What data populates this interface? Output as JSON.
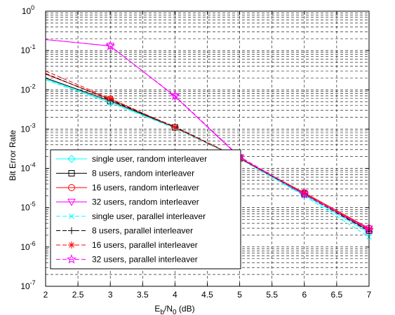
{
  "chart_data": {
    "type": "line",
    "xlabel": {
      "base1": "E",
      "sub1": "b",
      "mid": "/N",
      "sub2": "0",
      "tail": " (dB)"
    },
    "ylabel": "Bit Error Rate",
    "xlim": [
      2,
      7
    ],
    "ylim_exp": [
      -7,
      0
    ],
    "y_scale": "log",
    "grid": true,
    "legend_position": "lower-left",
    "x_ticks": [
      "2",
      "2.5",
      "3",
      "3.5",
      "4",
      "4.5",
      "5",
      "5.5",
      "6",
      "6.5",
      "7"
    ],
    "y_ticks": [
      {
        "exp": -7,
        "base": "10",
        "sup": "-7"
      },
      {
        "exp": -6,
        "base": "10",
        "sup": "-6"
      },
      {
        "exp": -5,
        "base": "10",
        "sup": "-5"
      },
      {
        "exp": -4,
        "base": "10",
        "sup": "-4"
      },
      {
        "exp": -3,
        "base": "10",
        "sup": "-3"
      },
      {
        "exp": -2,
        "base": "10",
        "sup": "-2"
      },
      {
        "exp": -1,
        "base": "10",
        "sup": "-1"
      },
      {
        "exp": 0,
        "base": "10",
        "sup": "0"
      }
    ],
    "series": [
      {
        "name": "single user, random interleaver",
        "color": "#00FFFF",
        "style": "solid",
        "marker": "diamond",
        "x": [
          2,
          3,
          4,
          5,
          6,
          7
        ],
        "y": [
          0.019,
          0.0048,
          0.0011,
          0.00018,
          2.1e-05,
          2.3e-06
        ]
      },
      {
        "name": "8 users, random interleaver",
        "color": "#000000",
        "style": "solid",
        "marker": "square",
        "x": [
          2,
          3,
          4,
          5,
          6,
          7
        ],
        "y": [
          0.02,
          0.0052,
          0.0011,
          0.00018,
          2.3e-05,
          2.6e-06
        ]
      },
      {
        "name": "16 users, random interleaver",
        "color": "#FF0000",
        "style": "solid",
        "marker": "circle",
        "x": [
          2,
          3,
          4,
          5,
          6,
          7
        ],
        "y": [
          0.025,
          0.0058,
          0.0011,
          0.00018,
          2.4e-05,
          3e-06
        ]
      },
      {
        "name": "32 users, random interleaver",
        "color": "#FF00FF",
        "style": "solid",
        "marker": "triangle-down",
        "x": [
          2,
          3,
          4,
          5,
          6,
          7
        ],
        "y": [
          0.19,
          0.13,
          0.0068,
          0.00019,
          2.2e-05,
          2.9e-06
        ]
      },
      {
        "name": "single user, parallel interleaver",
        "color": "#00FFFF",
        "style": "dashed",
        "marker": "x",
        "x": [
          2,
          3,
          4,
          5,
          6,
          7
        ],
        "y": [
          0.018,
          0.0047,
          0.00105,
          0.000175,
          2e-05,
          1.8e-06
        ]
      },
      {
        "name": "8 users, parallel interleaver",
        "color": "#000000",
        "style": "dashed",
        "marker": "plus",
        "x": [
          2,
          3,
          4,
          5,
          6,
          7
        ],
        "y": [
          0.026,
          0.0055,
          0.00115,
          0.00018,
          2.2e-05,
          2.5e-06
        ]
      },
      {
        "name": "16 users, parallel interleaver",
        "color": "#FF0000",
        "style": "dashed",
        "marker": "asterisk",
        "x": [
          2,
          3,
          4,
          5,
          6,
          7
        ],
        "y": [
          0.03,
          0.006,
          0.0011,
          0.00018,
          2.3e-05,
          2.8e-06
        ]
      },
      {
        "name": "32 users, parallel interleaver",
        "color": "#FF00FF",
        "style": "dashed",
        "marker": "star",
        "x": [
          2,
          3,
          4,
          5,
          6,
          7
        ],
        "y": [
          0.19,
          0.13,
          0.007,
          0.0002,
          2.2e-05,
          2.7e-06
        ]
      }
    ]
  }
}
